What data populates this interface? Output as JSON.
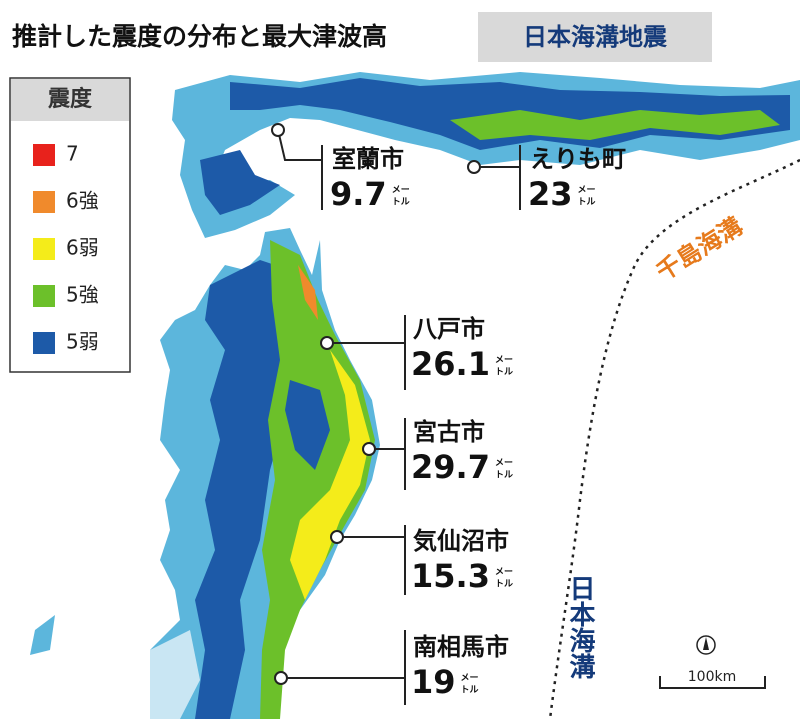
{
  "header": {
    "title": "推計した震度の分布と最大津波高",
    "badge": "日本海溝地震"
  },
  "legend": {
    "title": "震度",
    "items": [
      {
        "label": "7",
        "color": "#e8221c"
      },
      {
        "label": "6強",
        "color": "#f08a2c"
      },
      {
        "label": "6弱",
        "color": "#f4ec1a"
      },
      {
        "label": "5強",
        "color": "#6cc02a"
      },
      {
        "label": "5弱",
        "color": "#1d5aa8"
      }
    ]
  },
  "cities": [
    {
      "name": "室蘭市",
      "height": 9.7,
      "unit": [
        "メー",
        "トル"
      ]
    },
    {
      "name": "えりも町",
      "height": 23,
      "unit": [
        "メー",
        "トル"
      ]
    },
    {
      "name": "八戸市",
      "height": 26.1,
      "unit": [
        "メー",
        "トル"
      ]
    },
    {
      "name": "宮古市",
      "height": 29.7,
      "unit": [
        "メー",
        "トル"
      ]
    },
    {
      "name": "気仙沼市",
      "height": 15.3,
      "unit": [
        "メー",
        "トル"
      ]
    },
    {
      "name": "南相馬市",
      "height": 19,
      "unit": [
        "メー",
        "トル"
      ]
    }
  ],
  "trenches": [
    "千島海溝",
    "日本海溝"
  ],
  "scale": "100km"
}
